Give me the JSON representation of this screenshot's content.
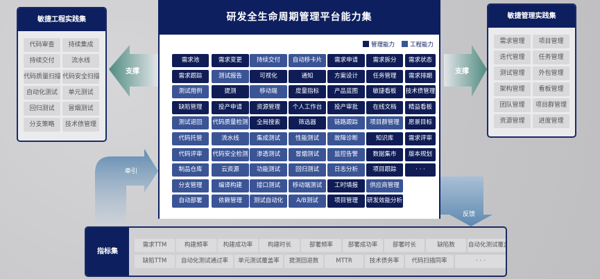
{
  "center": {
    "title": "研发全生命周期管理平台能力集",
    "legend": [
      {
        "label": "管理能力",
        "color": "#0f1c55"
      },
      {
        "label": "工程能力",
        "color": "#3a5496"
      }
    ],
    "grid": [
      [
        [
          "需求池",
          "D"
        ],
        [
          "需求变更",
          "D"
        ],
        [
          "持续交付",
          "L"
        ],
        [
          "自动移卡片",
          "L"
        ],
        [
          "需求申请",
          "D"
        ],
        [
          "需求拆分",
          "D"
        ],
        [
          "需求状态",
          "D"
        ]
      ],
      [
        [
          "需求跟踪",
          "D"
        ],
        [
          "测试报告",
          "L"
        ],
        [
          "可视化",
          "D"
        ],
        [
          "通知",
          "D"
        ],
        [
          "方案设计",
          "D"
        ],
        [
          "任务管理",
          "D"
        ],
        [
          "需求排期",
          "D"
        ]
      ],
      [
        [
          "测试用例",
          "L"
        ],
        [
          "提测",
          "D"
        ],
        [
          "移动端",
          "L"
        ],
        [
          "度量指标",
          "D"
        ],
        [
          "产品蓝图",
          "D"
        ],
        [
          "敏捷看板",
          "D"
        ],
        [
          "技术债管理",
          "D"
        ]
      ],
      [
        [
          "缺陷管理",
          "D"
        ],
        [
          "投产申请",
          "D"
        ],
        [
          "资源管理",
          "D"
        ],
        [
          "个人工作台",
          "D"
        ],
        [
          "投产审批",
          "D"
        ],
        [
          "在线文档",
          "D"
        ],
        [
          "精益看板",
          "D"
        ]
      ],
      [
        [
          "测试退回",
          "L"
        ],
        [
          "代码质量检测",
          "L"
        ],
        [
          "全局搜索",
          "D"
        ],
        [
          "筛选器",
          "D"
        ],
        [
          "链路跟踪",
          "L"
        ],
        [
          "项目群管理",
          "L"
        ],
        [
          "愿景目标",
          "D"
        ]
      ],
      [
        [
          "代码托管",
          "L"
        ],
        [
          "流水线",
          "L"
        ],
        [
          "集成测试",
          "L"
        ],
        [
          "性能测试",
          "L"
        ],
        [
          "故障诊断",
          "L"
        ],
        [
          "知识库",
          "D"
        ],
        [
          "需求评审",
          "D"
        ]
      ],
      [
        [
          "代码评审",
          "L"
        ],
        [
          "代码安全检测",
          "L"
        ],
        [
          "渗透测试",
          "L"
        ],
        [
          "冒烟测试",
          "L"
        ],
        [
          "监控告警",
          "L"
        ],
        [
          "数据集市",
          "D"
        ],
        [
          "版本规划",
          "D"
        ]
      ],
      [
        [
          "制品仓库",
          "L"
        ],
        [
          "云资源",
          "L"
        ],
        [
          "功能测试",
          "L"
        ],
        [
          "回归测试",
          "L"
        ],
        [
          "日志分析",
          "L"
        ],
        [
          "项目跟踪",
          "D"
        ],
        [
          "· · ·",
          "D"
        ]
      ],
      [
        [
          "分支管理",
          "L"
        ],
        [
          "编译构建",
          "L"
        ],
        [
          "接口测试",
          "L"
        ],
        [
          "移动端测试",
          "L"
        ],
        [
          "工时填报",
          "D"
        ],
        [
          "供应商管理",
          "L"
        ]
      ],
      [
        [
          "自动部署",
          "L"
        ],
        [
          "依赖管理",
          "L"
        ],
        [
          "测试自动化",
          "L"
        ],
        [
          "A/B测试",
          "L"
        ],
        [
          "项目管理",
          "D"
        ],
        [
          "研发效能分析",
          "D"
        ]
      ]
    ]
  },
  "left_panel": {
    "title": "敏捷工程实践集",
    "items": [
      "代码审查",
      "持续集成",
      "持续交付",
      "流水线",
      "代码质量扫描",
      "代码安全扫描",
      "自动化测试",
      "单元测试",
      "回归测试",
      "冒烟测试",
      "分支策略",
      "技术债管理"
    ]
  },
  "right_panel": {
    "title": "敏捷管理实践集",
    "items": [
      "需求管理",
      "项目管理",
      "迭代管理",
      "任务管理",
      "测试管理",
      "外包管理",
      "架构管理",
      "看板管理",
      "团队管理",
      "项目群管理",
      "资源管理",
      "进度管理"
    ]
  },
  "arrows": {
    "left": "支撑",
    "right": "支撑",
    "traction": "牵引",
    "feedback": "反馈"
  },
  "metrics": {
    "title": "指标集",
    "row1": [
      "需求TTM",
      "构建频率",
      "构建成功率",
      "构建时长",
      "部署频率",
      "部署成功率",
      "部署时长",
      "缺陷数",
      "自动化测试覆盖率"
    ],
    "row2": [
      "缺陷TTM",
      "自动化测试通过率",
      "单元测试覆盖率",
      "提测回退数",
      "MTTR",
      "技术债务率",
      "代码扫描同率",
      "· · ·"
    ]
  }
}
